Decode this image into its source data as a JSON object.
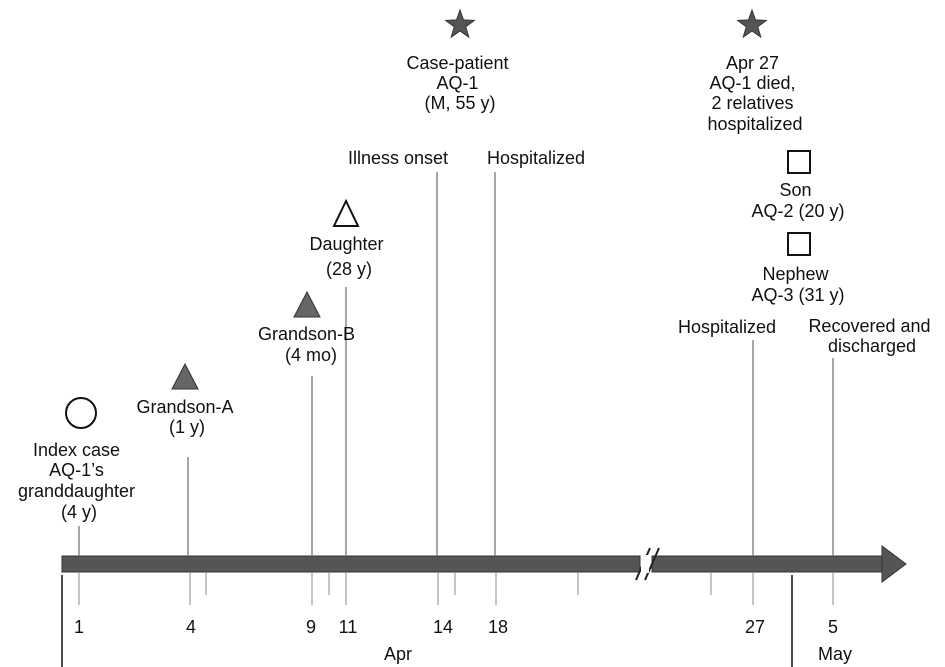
{
  "colors": {
    "axis": "#555555",
    "axis_edge": "#333333",
    "filled_marker": "#666666",
    "marker_stroke": "#111111",
    "stem": "#888888",
    "text": "#111111"
  },
  "events": [
    {
      "id": "index-case",
      "marker": "circle",
      "date": "Apr 1",
      "lines": [
        "Index case",
        "AQ-1’s",
        "granddaughter",
        "(4 y)"
      ]
    },
    {
      "id": "grandson-a",
      "marker": "filled-triangle",
      "date": "Apr 4",
      "lines": [
        "Grandson-A",
        "(1 y)"
      ]
    },
    {
      "id": "grandson-b",
      "marker": "filled-triangle",
      "date": "Apr 9",
      "lines": [
        "Grandson-B",
        "(4 mo)"
      ]
    },
    {
      "id": "daughter",
      "marker": "open-triangle",
      "date": "Apr 11",
      "lines": [
        "Daughter",
        "(28 y)"
      ]
    },
    {
      "id": "case-patient",
      "marker": "star",
      "lines": [
        "Case-patient",
        "AQ-1",
        "(M, 55 y)"
      ]
    },
    {
      "id": "illness-onset",
      "date": "Apr 14",
      "lines": [
        "Illness onset"
      ]
    },
    {
      "id": "hospitalized-1",
      "date": "Apr 18",
      "lines": [
        "Hospitalized"
      ]
    },
    {
      "id": "apr27-died",
      "marker": "star",
      "lines": [
        "Apr 27",
        "AQ-1 died,",
        "2 relatives",
        "hospitalized"
      ]
    },
    {
      "id": "son",
      "marker": "square",
      "lines": [
        "Son",
        "AQ-2 (20 y)"
      ]
    },
    {
      "id": "nephew",
      "marker": "square",
      "lines": [
        "Nephew",
        "AQ-3 (31 y)"
      ]
    },
    {
      "id": "hospitalized-2",
      "date": "Apr 27",
      "lines": [
        "Hospitalized"
      ]
    },
    {
      "id": "recovered",
      "date": "May 5",
      "lines": [
        "Recovered and",
        "discharged"
      ]
    }
  ],
  "axis": {
    "tick_labels": [
      "1",
      "4",
      "9",
      "11",
      "14",
      "18",
      "27",
      "5"
    ],
    "months": [
      "Apr",
      "May"
    ],
    "break_symbol": "//"
  }
}
